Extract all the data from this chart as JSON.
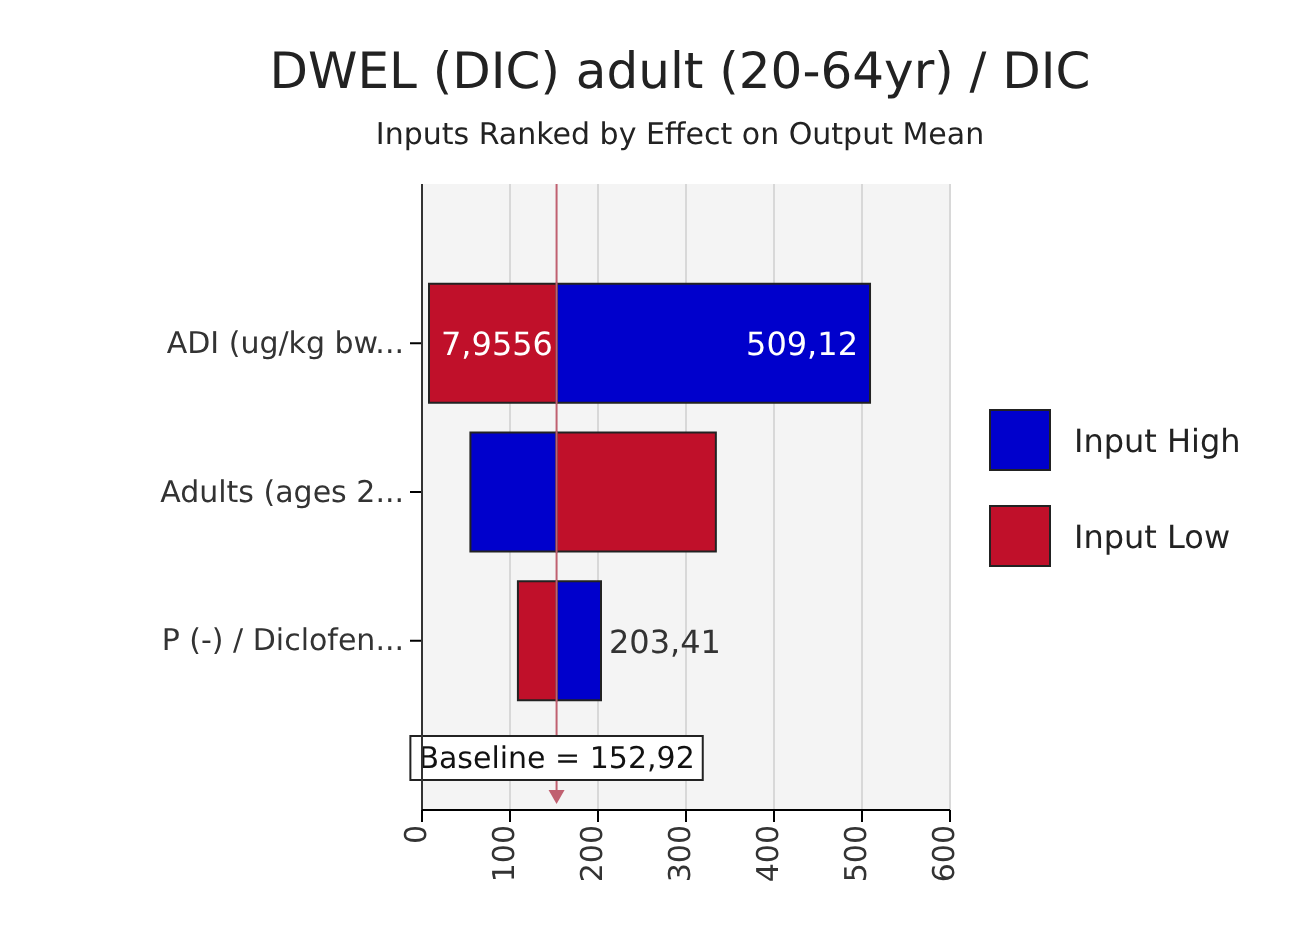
{
  "chart_data": {
    "type": "bar",
    "orientation": "horizontal",
    "title": "DWEL (DIC) adult (20-64yr) / DIC",
    "subtitle": "Inputs Ranked by Effect on Output Mean",
    "categories": [
      "ADI (ug/kg bw...",
      "Adults (ages 2...",
      "P (-) / Diclofen..."
    ],
    "series": [
      {
        "name": "Input High",
        "color": "#0000cc",
        "base": [
          152.92,
          55,
          152.92
        ],
        "values": [
          356.2,
          98,
          50.49
        ]
      },
      {
        "name": "Input Low",
        "color": "#c0102a",
        "base": [
          7.9556,
          152.92,
          109
        ],
        "values": [
          144.9644,
          181,
          44
        ]
      }
    ],
    "annotations": [
      {
        "text": "7,9556",
        "x": 7.9556,
        "y": "ADI (ug/kg bw..."
      },
      {
        "text": "509,12",
        "x": 509.12,
        "y": "ADI (ug/kg bw..."
      },
      {
        "text": "203,41",
        "x": 203.41,
        "y": "P (-) / Diclofen..."
      }
    ],
    "xlim": [
      0,
      600
    ],
    "xticks": [
      0,
      100,
      200,
      300,
      400,
      500,
      600
    ],
    "grid": "x",
    "legend": "right",
    "ref_lines": [
      {
        "axis": "x",
        "value": 152.92,
        "label": "Baseline = 152,92",
        "color": "#c06070"
      }
    ]
  }
}
